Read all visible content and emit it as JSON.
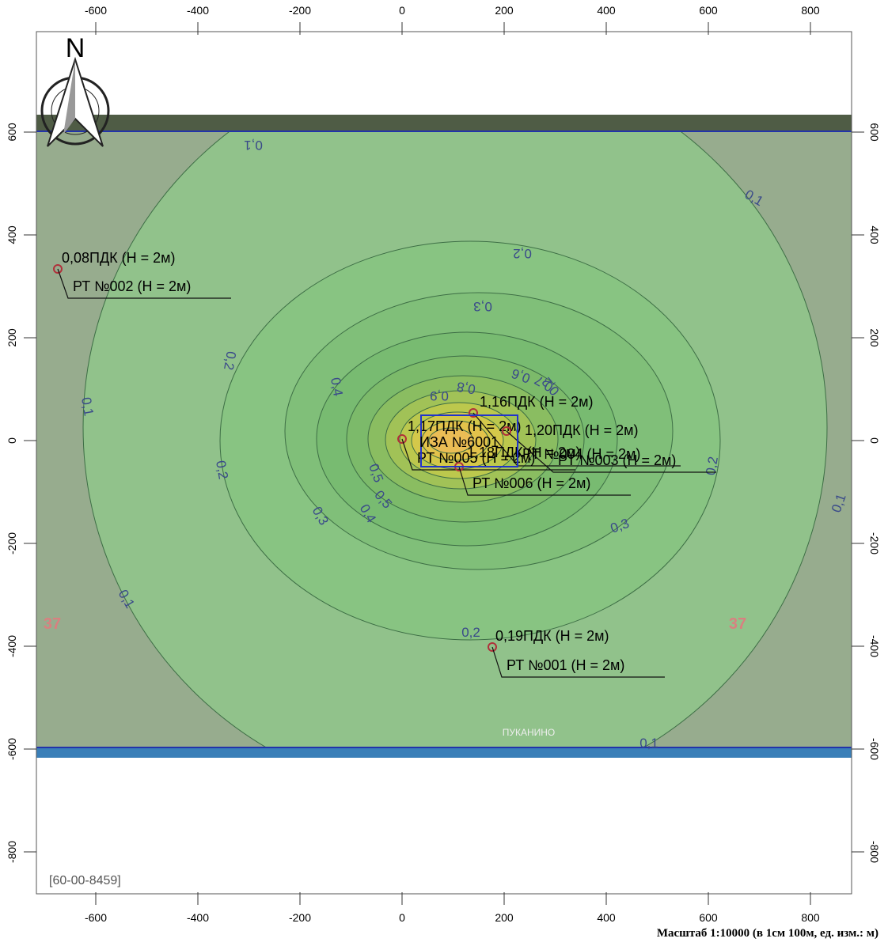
{
  "north": "N",
  "x_ticks": [
    -600,
    -400,
    -200,
    0,
    200,
    400,
    600,
    800
  ],
  "y_ticks": [
    600,
    400,
    200,
    0,
    -200,
    -400,
    -600,
    -800
  ],
  "isolines": [
    "0,1",
    "0,1",
    "0,1",
    "0,1",
    "0,1",
    "0,2",
    "0,2",
    "0,2",
    "0,2",
    "0,2",
    "0,3",
    "0,3",
    "0,3",
    "0,4",
    "0,4",
    "0,5",
    "0,5",
    "0,6",
    "0,7",
    "0,8",
    "0,9",
    "0,2",
    "0,1"
  ],
  "points": [
    {
      "pdk": "0,08ПДК (Н = 2м)",
      "name": "РТ №002 (Н = 2м)"
    },
    {
      "pdk": "0,19ПДК (Н = 2м)",
      "name": "РТ №001 (Н = 2м)"
    },
    {
      "pdk": "1,16ПДК (Н = 2м)",
      "name": "РТ №004 (Н = 2м)"
    },
    {
      "pdk": "1,17ПДК (Н = 2м)",
      "name": "РТ №005 (Н = 2м)"
    },
    {
      "pdk": "1,20ПДК (Н = 2м)",
      "name": "РТ №003 (Н = 2м)"
    },
    {
      "pdk": "1,18ПДК (Н = 2м)",
      "name": "РТ №006 (Н = 2м)"
    }
  ],
  "source": "ИЗА №6001",
  "places": [
    "37",
    "37",
    "ПУКАНИНО"
  ],
  "code": "[60-00-8459]",
  "scale": "Масштаб 1:10000 (в 1см 100м, ед. изм.: м)"
}
